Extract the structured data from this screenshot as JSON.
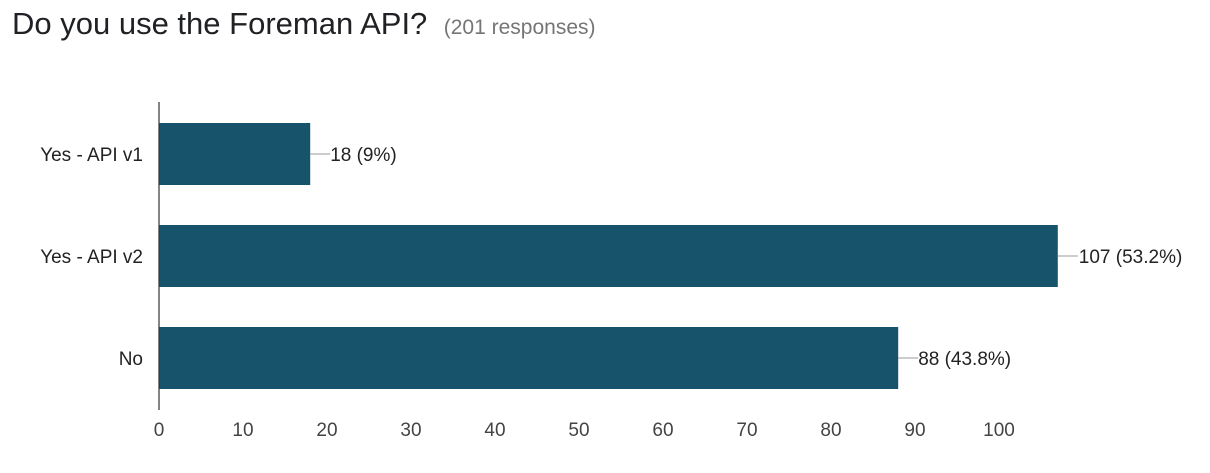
{
  "question": {
    "title": "Do you use the Foreman API?",
    "responses": "(201 responses)"
  },
  "colors": {
    "bar": "#17546b",
    "axis": "#333333",
    "leader": "#999999"
  },
  "chart_data": {
    "type": "bar",
    "orientation": "horizontal",
    "categories": [
      "Yes - API v1",
      "Yes - API v2",
      "No"
    ],
    "values": [
      18,
      107,
      88
    ],
    "data_labels": [
      "18 (9%)",
      "107 (53.2%)",
      "88 (43.8%)"
    ],
    "xlim": [
      0,
      107
    ],
    "xticks": [
      0,
      10,
      20,
      30,
      40,
      50,
      60,
      70,
      80,
      90,
      100
    ],
    "grid": false,
    "legend": "none"
  }
}
